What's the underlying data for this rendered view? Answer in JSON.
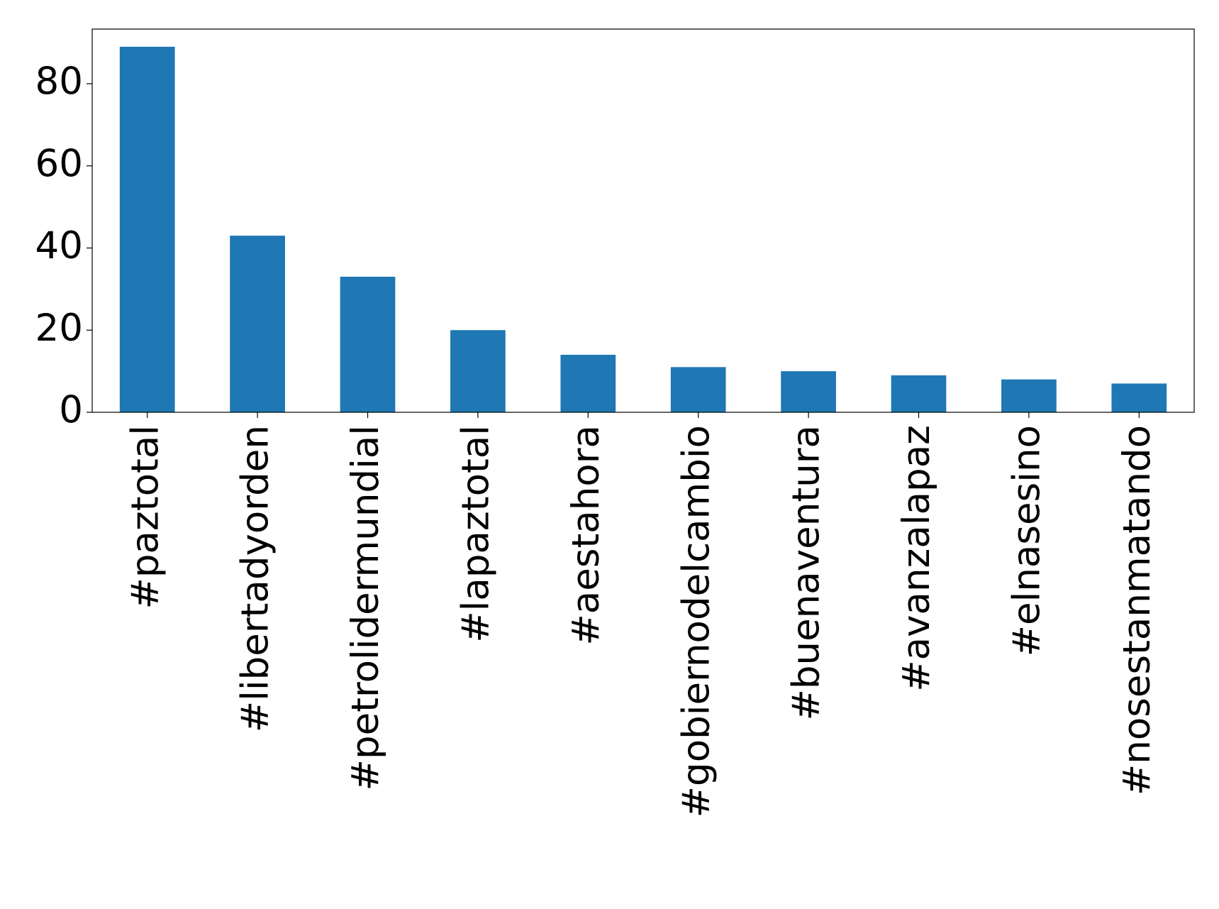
{
  "chart_data": {
    "type": "bar",
    "categories": [
      "#paztotal",
      "#libertadyorden",
      "#petrolidermundial",
      "#lapaztotal",
      "#aestahora",
      "#gobiernodelcambio",
      "#buenaventura",
      "#avanzalapaz",
      "#elnasesino",
      "#nosestanmatando"
    ],
    "values": [
      89,
      43,
      33,
      20,
      14,
      11,
      10,
      9,
      8,
      7
    ],
    "color": "#1f77b4",
    "ylim": [
      0,
      93.3
    ],
    "yticks": [
      0,
      20,
      40,
      60,
      80
    ],
    "grid": false
  }
}
